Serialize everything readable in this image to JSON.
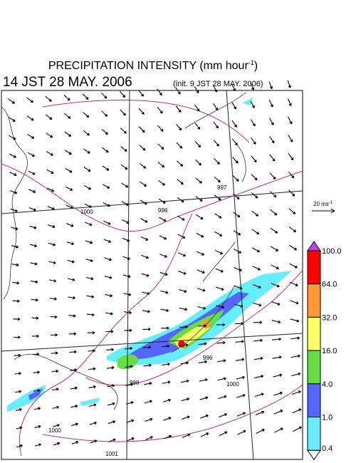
{
  "header": {
    "title_main": "PRECIPITATION INTENSITY (mm hour",
    "title_sup": "-1",
    "title_end": ")",
    "valid_time": "14 JST 28 MAY. 2006",
    "init_time": "(init. 9 JST 28 MAY. 2006)"
  },
  "wind_scale": {
    "label": "20 ms",
    "sup": "-1"
  },
  "colorbar": {
    "labels": [
      "100.0",
      "64.0",
      "32.0",
      "16.0",
      "4.0",
      "1.0",
      "0.4"
    ],
    "colors": [
      "#ff0000",
      "#ff9933",
      "#ffff66",
      "#66dd44",
      "#5566ff",
      "#66eeff"
    ],
    "over_color": "#bb44ee",
    "under_color": "#ffffff"
  },
  "contour_labels": [
    "1000",
    "996",
    "997",
    "988",
    "996",
    "1000",
    "1000",
    "1001"
  ]
}
